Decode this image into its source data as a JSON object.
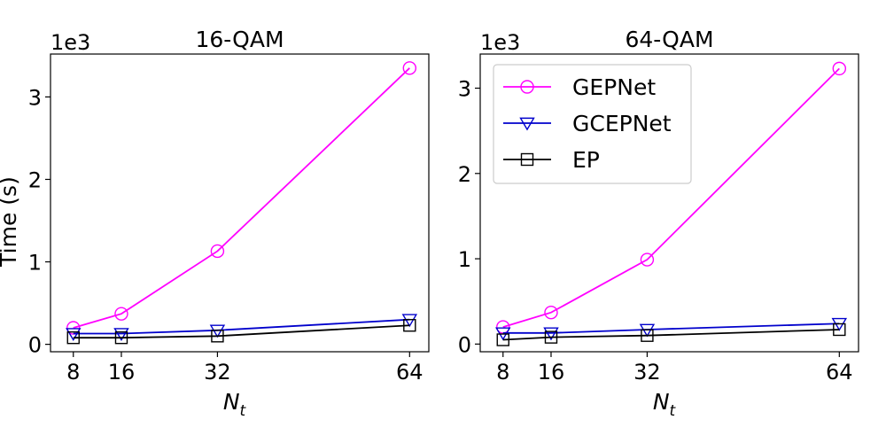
{
  "ylabel": "Time (s)",
  "legend": {
    "entries": [
      {
        "label": "GEPNet",
        "color": "#ff00ff",
        "marker": "circle"
      },
      {
        "label": "GCEPNet",
        "color": "#0000cc",
        "marker": "triangle-down"
      },
      {
        "label": "EP",
        "color": "#000000",
        "marker": "square"
      }
    ]
  },
  "chart_data": [
    {
      "type": "line",
      "title": "16-QAM",
      "xlabel_main": "N",
      "xlabel_sub": "t",
      "x": [
        8,
        16,
        32,
        64
      ],
      "xticks": [
        "8",
        "16",
        "32",
        "64"
      ],
      "y_offset_label": "1e3",
      "yticks": [
        "0",
        "1",
        "2",
        "3"
      ],
      "ylim": [
        -0.09,
        3.52
      ],
      "series": [
        {
          "name": "GEPNet",
          "values": [
            0.2,
            0.37,
            1.13,
            3.35
          ]
        },
        {
          "name": "GCEPNet",
          "values": [
            0.13,
            0.13,
            0.17,
            0.3
          ]
        },
        {
          "name": "EP",
          "values": [
            0.08,
            0.08,
            0.1,
            0.23
          ]
        }
      ]
    },
    {
      "type": "line",
      "title": "64-QAM",
      "xlabel_main": "N",
      "xlabel_sub": "t",
      "x": [
        8,
        16,
        32,
        64
      ],
      "xticks": [
        "8",
        "16",
        "32",
        "64"
      ],
      "y_offset_label": "1e3",
      "yticks": [
        "0",
        "1",
        "2",
        "3"
      ],
      "ylim": [
        -0.09,
        3.4
      ],
      "series": [
        {
          "name": "GEPNet",
          "values": [
            0.2,
            0.37,
            0.99,
            3.23
          ]
        },
        {
          "name": "GCEPNet",
          "values": [
            0.13,
            0.13,
            0.17,
            0.24
          ]
        },
        {
          "name": "EP",
          "values": [
            0.05,
            0.08,
            0.1,
            0.17
          ]
        }
      ]
    }
  ]
}
